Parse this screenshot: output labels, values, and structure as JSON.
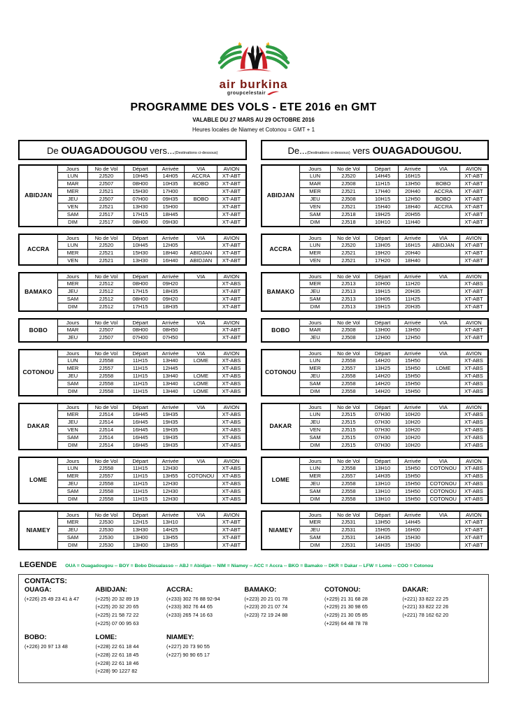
{
  "brand_colors": {
    "logo_red": "#cf2229",
    "logo_green": "#2e9b44",
    "logo_yellow": "#f5b01a",
    "brand_text": "#7a1a12",
    "legend_green": "#00a44f"
  },
  "header": {
    "brand": "air burkina",
    "subbrand": "groupcelestair",
    "title": "PROGRAMME  DES VOLS - ETE 2016   en  GMT",
    "validity": "VALABLE  DU 27 MARS  AU 29 OCTOBRE 2016",
    "note": "Heures locales de Niamey  et Cotonou  = GMT + 1"
  },
  "headings": {
    "outbound": {
      "p1": "De ",
      "b1": "OUAGADOUGOU",
      "p2": " vers...",
      "small": "(Destinations ci-dessous)"
    },
    "inbound": {
      "p1": "De...",
      "small": "(Destinations ci-dessous)",
      "p2": " vers ",
      "b1": "OUAGADOUGOU."
    }
  },
  "table_headers": [
    "Jours",
    "No de Vol",
    "Départ",
    "Arrivée",
    "VIA",
    "AVION"
  ],
  "tables": {
    "outbound": [
      {
        "dest": "ABIDJAN",
        "rows": [
          [
            "LUN",
            "2J520",
            "10H45",
            "14H05",
            "ACCRA",
            "XT-ABT"
          ],
          [
            "MAR",
            "2J507",
            "08H00",
            "10H35",
            "BOBO",
            "XT-ABT"
          ],
          [
            "MER",
            "2J521",
            "15H30",
            "17H00",
            "",
            "XT-ABT"
          ],
          [
            "JEU",
            "2J507",
            "07H00",
            "09H35",
            "BOBO",
            "XT-ABT"
          ],
          [
            "VEN",
            "2J521",
            "13H30",
            "15H00",
            "",
            "XT-ABT"
          ],
          [
            "SAM",
            "2J517",
            "17H15",
            "18H45",
            "",
            "XT-ABT"
          ],
          [
            "DIM",
            "2J517",
            "08H00",
            "09H30",
            "",
            "XT-ABT"
          ]
        ]
      },
      {
        "dest": "ACCRA",
        "rows": [
          [
            "LUN",
            "2J520",
            "10H45",
            "12H05",
            "",
            "XT-ABT"
          ],
          [
            "MER",
            "2J521",
            "15H30",
            "18H40",
            "ABIDJAN",
            "XT-ABT"
          ],
          [
            "VEN",
            "2J521",
            "13H30",
            "16H40",
            "ABIDJAN",
            "XT-ABT"
          ]
        ]
      },
      {
        "dest": "BAMAKO",
        "rows": [
          [
            "MER",
            "2J512",
            "08H00",
            "09H20",
            "",
            "XT-ABS"
          ],
          [
            "JEU",
            "2J512",
            "17H15",
            "18H35",
            "",
            "XT-ABT"
          ],
          [
            "SAM",
            "2J512",
            "08H00",
            "09H20",
            "",
            "XT-ABT"
          ],
          [
            "DIM",
            "2J512",
            "17H15",
            "18H35",
            "",
            "XT-ABT"
          ]
        ]
      },
      {
        "dest": "BOBO",
        "rows": [
          [
            "MAR",
            "2J507",
            "08H00",
            "08H50",
            "",
            "XT-ABT"
          ],
          [
            "JEU",
            "2J507",
            "07H00",
            "07H50",
            "",
            "XT-ABT"
          ]
        ]
      },
      {
        "dest": "COTONOU",
        "rows": [
          [
            "LUN",
            "2J558",
            "11H15",
            "13H40",
            "LOME",
            "XT-ABS"
          ],
          [
            "MER",
            "2J557",
            "11H15",
            "12H45",
            "",
            "XT-ABS"
          ],
          [
            "JEU",
            "2J558",
            "11H15",
            "13H40",
            "LOME",
            "XT-ABS"
          ],
          [
            "SAM",
            "2J558",
            "11H15",
            "13H40",
            "LOME",
            "XT-ABS"
          ],
          [
            "DIM",
            "2J558",
            "11H15",
            "13H40",
            "LOME",
            "XT-ABS"
          ]
        ]
      },
      {
        "dest": "DAKAR",
        "rows": [
          [
            "MER",
            "2J514",
            "16H45",
            "19H35",
            "",
            "XT-ABS"
          ],
          [
            "JEU",
            "2J514",
            "16H45",
            "19H35",
            "",
            "XT-ABS"
          ],
          [
            "VEN",
            "2J514",
            "16H45",
            "19H35",
            "",
            "XT-ABS"
          ],
          [
            "SAM",
            "2J514",
            "16H45",
            "19H35",
            "",
            "XT-ABS"
          ],
          [
            "DIM",
            "2J514",
            "16H45",
            "19H35",
            "",
            "XT-ABS"
          ]
        ]
      },
      {
        "dest": "LOME",
        "rows": [
          [
            "LUN",
            "2J558",
            "11H15",
            "12H30",
            "",
            "XT-ABS"
          ],
          [
            "MER",
            "2J557",
            "11H15",
            "13H55",
            "COTONOU",
            "XT-ABS"
          ],
          [
            "JEU",
            "2J558",
            "11H15",
            "12H30",
            "",
            "XT-ABS"
          ],
          [
            "SAM",
            "2J558",
            "11H15",
            "12H30",
            "",
            "XT-ABS"
          ],
          [
            "DIM",
            "2J558",
            "11H15",
            "12H30",
            "",
            "XT-ABS"
          ]
        ]
      },
      {
        "dest": "NIAMEY",
        "rows": [
          [
            "MER",
            "2J530",
            "12H15",
            "13H10",
            "",
            "XT-ABT"
          ],
          [
            "JEU",
            "2J530",
            "13H30",
            "14H25",
            "",
            "XT-ABT"
          ],
          [
            "SAM",
            "2J530",
            "13H00",
            "13H55",
            "",
            "XT-ABT"
          ],
          [
            "DIM",
            "2J530",
            "13H00",
            "13H55",
            "",
            "XT-ABT"
          ]
        ]
      }
    ],
    "inbound": [
      {
        "dest": "ABIDJAN",
        "rows": [
          [
            "LUN",
            "2J520",
            "14H45",
            "16H15",
            "",
            "XT-ABT"
          ],
          [
            "MAR",
            "2J508",
            "11H15",
            "13H50",
            "BOBO",
            "XT-ABT"
          ],
          [
            "MER",
            "2J521",
            "17H40",
            "20H40",
            "ACCRA",
            "XT-ABT"
          ],
          [
            "JEU",
            "2J508",
            "10H15",
            "12H50",
            "BOBO",
            "XT-ABT"
          ],
          [
            "VEN",
            "2J521",
            "15H40",
            "18H40",
            "ACCRA",
            "XT-ABT"
          ],
          [
            "SAM",
            "2J518",
            "19H25",
            "20H55",
            "",
            "XT-ABT"
          ],
          [
            "DIM",
            "2J518",
            "10H10",
            "11H40",
            "",
            "XT-ABT"
          ]
        ]
      },
      {
        "dest": "ACCRA",
        "rows": [
          [
            "LUN",
            "2J520",
            "13H05",
            "16H15",
            "ABIDJAN",
            "XT-ABT"
          ],
          [
            "MER",
            "2J521",
            "19H20",
            "20H40",
            "",
            "XT-ABT"
          ],
          [
            "VEN",
            "2J521",
            "17H20",
            "18H40",
            "",
            "XT-ABT"
          ]
        ]
      },
      {
        "dest": "BAMAKO",
        "rows": [
          [
            "MER",
            "2J513",
            "10H00",
            "11H20",
            "",
            "XT-ABS"
          ],
          [
            "JEU",
            "2J513",
            "19H15",
            "20H35",
            "",
            "XT-ABT"
          ],
          [
            "SAM",
            "2J513",
            "10H05",
            "11H25",
            "",
            "XT-ABT"
          ],
          [
            "DIM",
            "2J513",
            "19H15",
            "20H35",
            "",
            "XT-ABT"
          ]
        ]
      },
      {
        "dest": "BOBO",
        "rows": [
          [
            "MAR",
            "2J508",
            "13H00",
            "13H50",
            "",
            "XT-ABT"
          ],
          [
            "JEU",
            "2J508",
            "12H00",
            "12H50",
            "",
            "XT-ABT"
          ]
        ]
      },
      {
        "dest": "COTONOU",
        "rows": [
          [
            "LUN",
            "2J558",
            "14H20",
            "15H50",
            "",
            "XT-ABS"
          ],
          [
            "MER",
            "2J557",
            "13H25",
            "15H50",
            "LOME",
            "XT-ABS"
          ],
          [
            "JEU",
            "2J558",
            "14H20",
            "15H50",
            "",
            "XT-ABS"
          ],
          [
            "SAM",
            "2J558",
            "14H20",
            "15H50",
            "",
            "XT-ABS"
          ],
          [
            "DIM",
            "2J558",
            "14H20",
            "15H50",
            "",
            "XT-ABS"
          ]
        ]
      },
      {
        "dest": "DAKAR",
        "rows": [
          [
            "LUN",
            "2J515",
            "07H30",
            "10H20",
            "",
            "XT-ABS"
          ],
          [
            "JEU",
            "2J515",
            "07H30",
            "10H20",
            "",
            "XT-ABS"
          ],
          [
            "VEN",
            "2J515",
            "07H30",
            "10H20",
            "",
            "XT-ABS"
          ],
          [
            "SAM",
            "2J515",
            "07H30",
            "10H20",
            "",
            "XT-ABS"
          ],
          [
            "DIM",
            "2J515",
            "07H30",
            "10H20",
            "",
            "XT-ABS"
          ]
        ]
      },
      {
        "dest": "LOME",
        "rows": [
          [
            "LUN",
            "2J558",
            "13H10",
            "15H50",
            "COTONOU",
            "XT-ABS"
          ],
          [
            "MER",
            "2J557",
            "14H35",
            "15H50",
            "",
            "XT-ABS"
          ],
          [
            "JEU",
            "2J558",
            "13H10",
            "15H50",
            "COTONOU",
            "XT-ABS"
          ],
          [
            "SAM",
            "2J558",
            "13H10",
            "15H50",
            "COTONOU",
            "XT-ABS"
          ],
          [
            "DIM",
            "2J558",
            "13H10",
            "15H50",
            "COTONOU",
            "XT-ABS"
          ]
        ]
      },
      {
        "dest": "NIAMEY",
        "rows": [
          [
            "MER",
            "2J531",
            "13H50",
            "14H45",
            "",
            "XT-ABT"
          ],
          [
            "JEU",
            "2J531",
            "15H05",
            "16H00",
            "",
            "XT-ABT"
          ],
          [
            "SAM",
            "2J531",
            "14H35",
            "15H30",
            "",
            "XT-ABT"
          ],
          [
            "DIM",
            "2J531",
            "14H35",
            "15H30",
            "",
            "XT-ABT"
          ]
        ]
      }
    ]
  },
  "legend": {
    "label": "LEGENDE",
    "text": "OUA = Ouagadougou -- BOY = Bobo Dioualasso  -- ABJ = Abidjan -- NIM = Niamey -- ACC = Accra -- BKO = Bamako -- DKR = Dakar -- LFW = Lomé -- COO = Cotonou"
  },
  "contacts": {
    "title": "CONTACTS:",
    "row1": [
      {
        "city": "OUAGA:",
        "numbers": [
          "(+226) 25 49 23 41 à 47"
        ]
      },
      {
        "city": "ABIDJAN:",
        "numbers": [
          "(+225) 20 32 89 19",
          "(+225) 20 32 20 65",
          "(+225) 21 58 72 22",
          "(+225) 07 00 95 63"
        ]
      },
      {
        "city": "ACCRA:",
        "numbers": [
          "(+233) 302 76 88 92-94",
          "(+233) 302 76 44 65",
          "(+233) 265 74 16 63"
        ]
      },
      {
        "city": "BAMAKO:",
        "numbers": [
          "(+223) 20 21 01 78",
          "(+223) 20 21 07 74",
          "(+223) 72 19 24 88"
        ]
      },
      {
        "city": "COTONOU:",
        "numbers": [
          "(+229) 21 31 68 28",
          "(+229) 21 30 98 65",
          "(+229) 21 30 05 85",
          "(+229) 64 48 78 78"
        ]
      },
      {
        "city": "DAKAR:",
        "numbers": [
          "(+221) 33 822 22 25",
          "(+221) 33 822 22 26",
          "(+221) 78 162 62 20"
        ]
      }
    ],
    "row2": [
      {
        "city": "BOBO:",
        "numbers": [
          "(+226) 20 97 13 48"
        ]
      },
      {
        "city": "LOME:",
        "numbers": [
          "(+228) 22 61 18 44",
          "(+228) 22 61 18 45",
          "(+228) 22 61 18 46",
          "(+228) 90 1227 82"
        ]
      },
      {
        "city": "NIAMEY:",
        "numbers": [
          "(+227) 20 73 90 55",
          "(+227) 90 90 65 17"
        ]
      }
    ]
  }
}
